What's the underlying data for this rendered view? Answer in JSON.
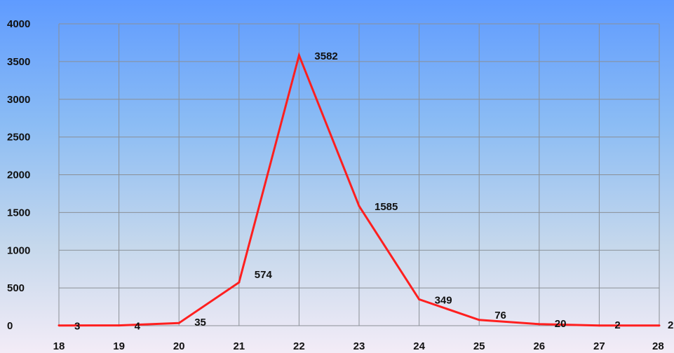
{
  "chart_data": {
    "type": "line",
    "title": "",
    "xlabel": "",
    "ylabel": "",
    "x": [
      18,
      19,
      20,
      21,
      22,
      23,
      24,
      25,
      26,
      27,
      28
    ],
    "x_tick_labels": [
      "18",
      "19",
      "20",
      "21",
      "22",
      "23",
      "24",
      "25",
      "26",
      "27",
      "28"
    ],
    "y_ticks": [
      0,
      500,
      1000,
      1500,
      2000,
      2500,
      3000,
      3500,
      4000
    ],
    "y_tick_labels": [
      "0",
      "500",
      "1000",
      "1500",
      "2000",
      "2500",
      "3000",
      "3500",
      "4000"
    ],
    "xlim": [
      18,
      28
    ],
    "ylim": [
      0,
      4000
    ],
    "grid": true,
    "legend": "none",
    "series": [
      {
        "values": [
          3,
          4,
          35,
          574,
          3582,
          1585,
          349,
          76,
          20,
          2,
          2
        ],
        "data_labels": [
          "3",
          "4",
          "35",
          "574",
          "3582",
          "1585",
          "349",
          "76",
          "20",
          "2",
          "2"
        ],
        "color": "#ff1f1f"
      }
    ]
  }
}
